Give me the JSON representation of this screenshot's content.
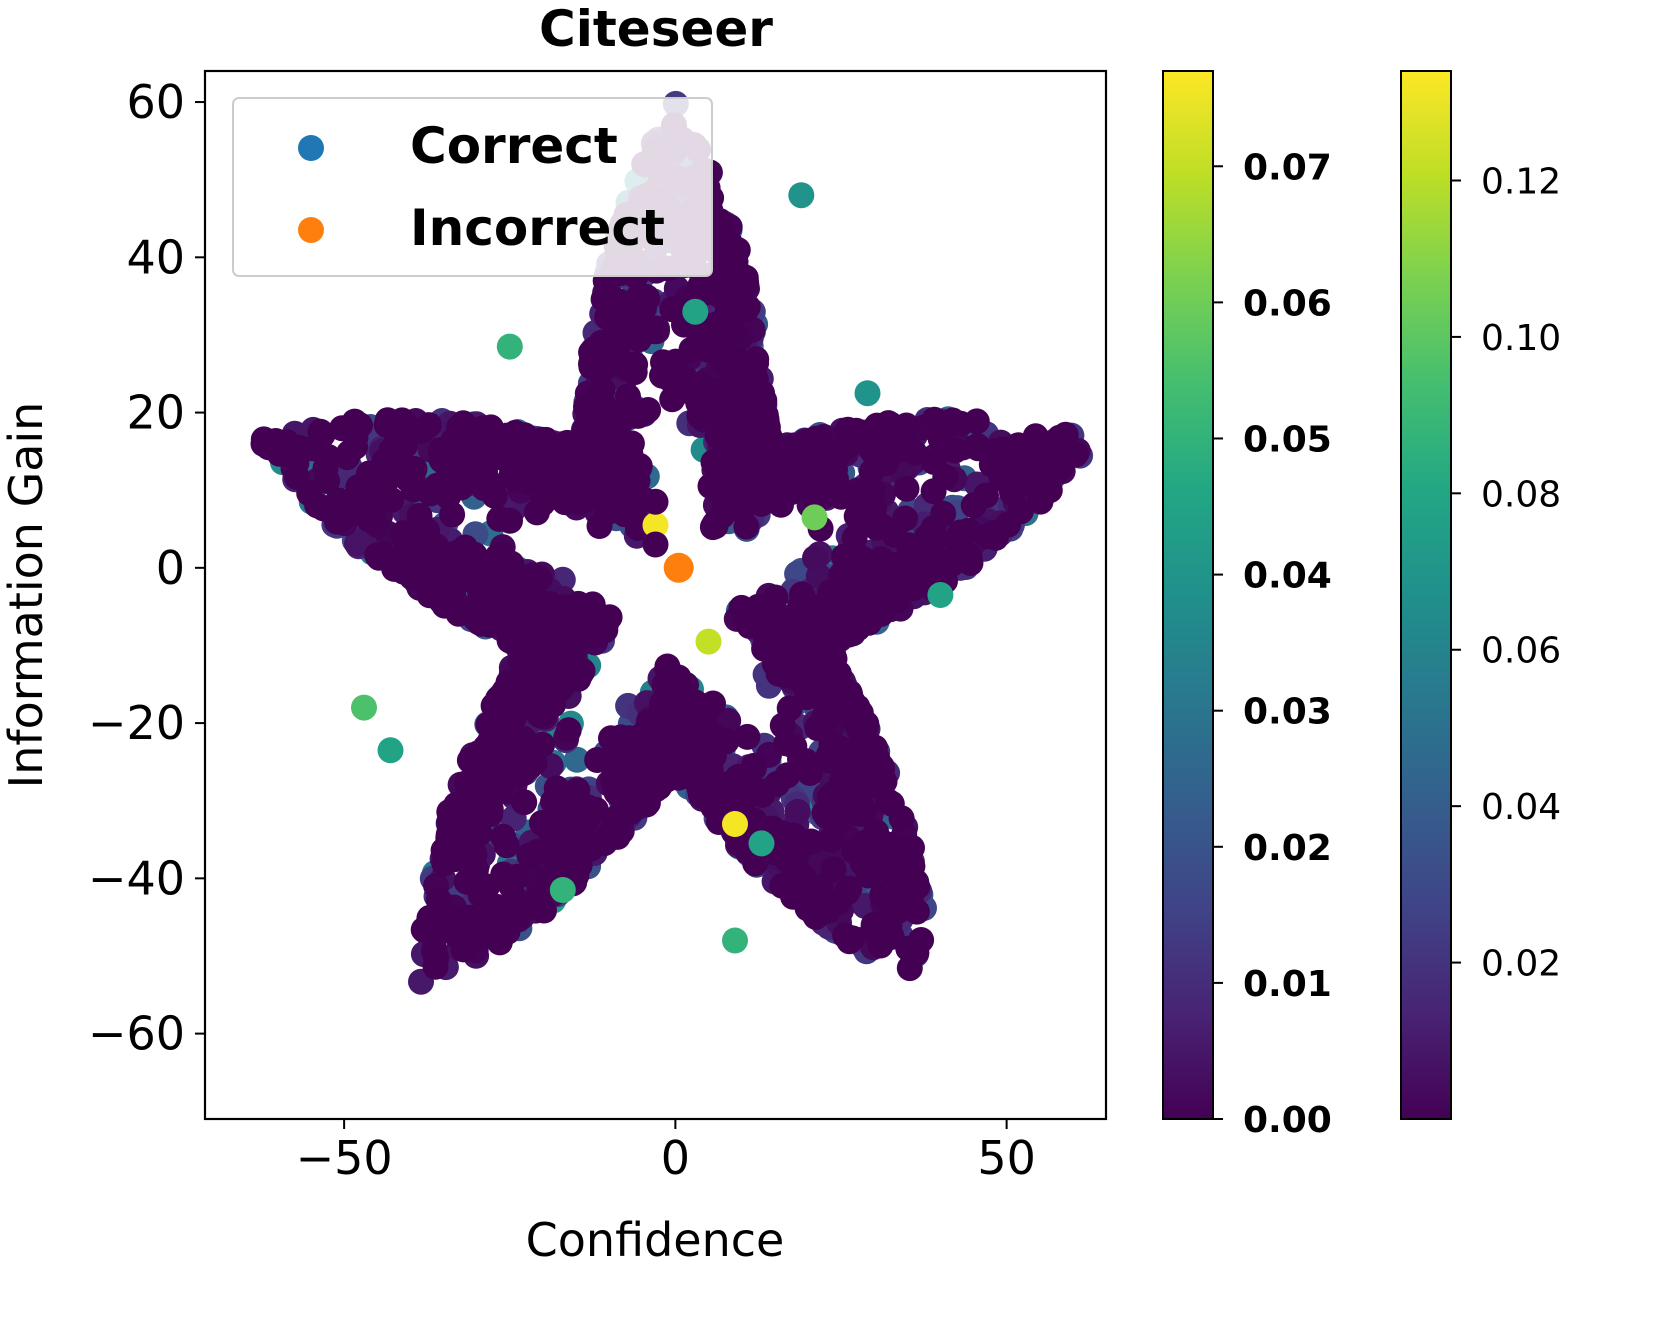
{
  "chart_data": {
    "type": "scatter",
    "title": "Citeseer",
    "xlabel": "Confidence",
    "ylabel": "Information Gain",
    "xlim": [
      -71,
      65
    ],
    "ylim": [
      -71,
      64
    ],
    "xticks": [
      -50,
      0,
      50
    ],
    "xtick_labels": [
      "−50",
      "0",
      "50"
    ],
    "yticks": [
      60,
      40,
      20,
      0,
      -20,
      -40,
      -60
    ],
    "ytick_labels": [
      "60",
      "40",
      "20",
      "0",
      "−20",
      "−40",
      "−60"
    ],
    "legend": {
      "position": "top-left",
      "entries": [
        {
          "label": "Correct",
          "color": "#1f77b4"
        },
        {
          "label": "Incorrect",
          "color": "#ff7f0e"
        }
      ]
    },
    "colorbars": [
      {
        "name": "Correct",
        "min": 0.0,
        "max": 0.077,
        "ticks": [
          0.0,
          0.01,
          0.02,
          0.03,
          0.04,
          0.05,
          0.06,
          0.07
        ],
        "tick_labels": [
          "0.00",
          "0.01",
          "0.02",
          "0.03",
          "0.04",
          "0.05",
          "0.06",
          "0.07"
        ],
        "bold": true
      },
      {
        "name": "Incorrect",
        "min": 0.0,
        "max": 0.134,
        "ticks": [
          0.02,
          0.04,
          0.06,
          0.08,
          0.1,
          0.12
        ],
        "tick_labels": [
          "0.02",
          "0.04",
          "0.06",
          "0.08",
          "0.10",
          "0.12"
        ],
        "bold": false
      }
    ],
    "colormap": "viridis",
    "highlight_points": [
      {
        "x": 0.5,
        "y": 0.0,
        "color": "#ff7f0e",
        "series": "Incorrect"
      },
      {
        "x": -3,
        "y": 5.5,
        "value": 0.076,
        "series": "Correct"
      },
      {
        "x": 9,
        "y": -33,
        "value": 0.076,
        "series": "Correct"
      },
      {
        "x": -3,
        "y": 3,
        "value": 0.0,
        "series": "Correct"
      },
      {
        "x": -3,
        "y": 8.5,
        "value": 0.0,
        "series": "Correct"
      },
      {
        "x": 21,
        "y": 6.5,
        "value": 0.06,
        "series": "Correct"
      },
      {
        "x": -17,
        "y": -41.5,
        "value": 0.05,
        "series": "Correct"
      },
      {
        "x": -47,
        "y": -18,
        "value": 0.055,
        "series": "Correct"
      },
      {
        "x": -43,
        "y": -23.5,
        "value": 0.045,
        "series": "Correct"
      },
      {
        "x": 9,
        "y": -48,
        "value": 0.05,
        "series": "Correct"
      },
      {
        "x": 19,
        "y": 48,
        "value": 0.04,
        "series": "Correct"
      },
      {
        "x": 40,
        "y": -3.5,
        "value": 0.045,
        "series": "Correct"
      },
      {
        "x": 5,
        "y": -9.5,
        "value": 0.07,
        "series": "Correct"
      },
      {
        "x": -25,
        "y": 28.5,
        "value": 0.05,
        "series": "Correct"
      },
      {
        "x": 3,
        "y": 33,
        "value": 0.045,
        "series": "Correct"
      },
      {
        "x": 29,
        "y": 22.5,
        "value": 0.04,
        "series": "Correct"
      },
      {
        "x": 13,
        "y": -35.5,
        "value": 0.045,
        "series": "Correct"
      }
    ],
    "clusters": [
      {
        "series": "Correct",
        "shape": "star",
        "center": [
          0,
          -3
        ],
        "radius_outer": 63,
        "radius_inner": 24,
        "point_count": 3200,
        "value_range": [
          0.0,
          0.045
        ]
      }
    ]
  }
}
